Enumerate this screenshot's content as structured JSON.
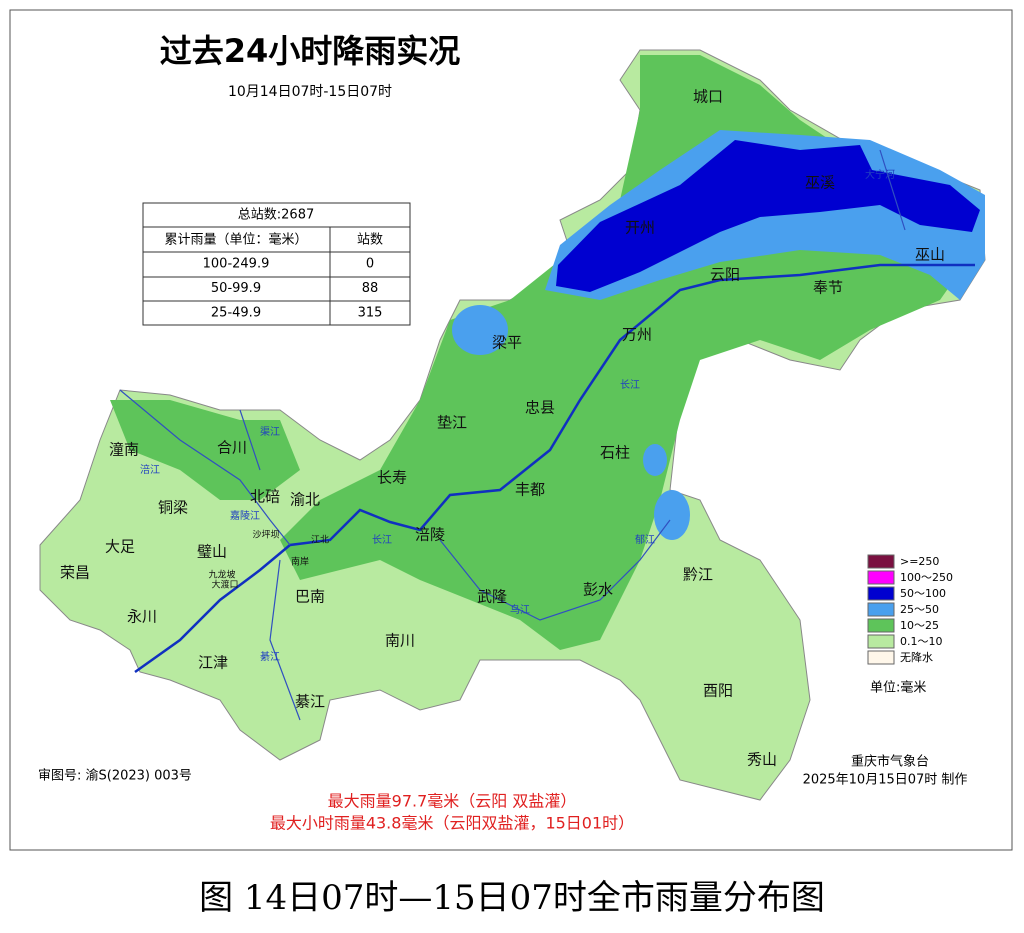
{
  "header": {
    "title": "过去24小时降雨实况",
    "subtitle": "10月14日07时-15日07时"
  },
  "table": {
    "total": "总站数:2687",
    "columns": [
      "累计雨量（单位：毫米）",
      "站数"
    ],
    "rows": [
      [
        "100-249.9",
        0
      ],
      [
        "50-99.9",
        88
      ],
      [
        "25-49.9",
        315
      ]
    ]
  },
  "legend": {
    "items": [
      {
        "label": ">=250",
        "color": "#7a1040"
      },
      {
        "label": "100～250",
        "color": "#ff00ff"
      },
      {
        "label": "50～100",
        "color": "#0000d0"
      },
      {
        "label": "25～50",
        "color": "#4aa0ee"
      },
      {
        "label": "10～25",
        "color": "#5ec45a"
      },
      {
        "label": "0.1～10",
        "color": "#b8eaa0"
      },
      {
        "label": "无降水",
        "color": "#fff7ea"
      }
    ],
    "unit": "单位:毫米"
  },
  "places": [
    "城口",
    "巫溪",
    "开州",
    "云阳",
    "奉节",
    "巫山",
    "梁平",
    "万州",
    "忠县",
    "垫江",
    "石柱",
    "长寿",
    "丰都",
    "潼南",
    "合川",
    "铜梁",
    "北碚",
    "渝北",
    "大足",
    "荣昌",
    "璧山",
    "涪陵",
    "永川",
    "巴南",
    "武隆",
    "彭水",
    "黔江",
    "江津",
    "南川",
    "綦江",
    "酉阳",
    "秀山",
    "沙坪坝",
    "九龙坡",
    "大渡口",
    "南岸",
    "江北"
  ],
  "rivers": [
    "涪江",
    "嘉陵江",
    "渠江",
    "长江",
    "长江",
    "大宁河",
    "乌江",
    "郁江",
    "綦江"
  ],
  "footer": {
    "review": "审图号: 渝S(2023) 003号",
    "org": "重庆市气象台",
    "made": "2025年10月15日07时  制作",
    "max_rain": "最大雨量97.7毫米（云阳 双盐灌）",
    "max_hourly": "最大小时雨量43.8毫米（云阳双盐灌，15日01时）"
  },
  "caption": "图  14日07时—15日07时全市雨量分布图"
}
